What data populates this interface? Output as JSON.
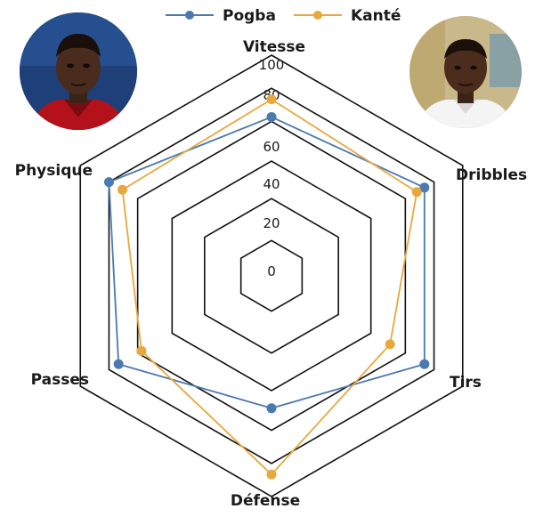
{
  "chart_data": {
    "type": "radar",
    "axes": [
      "Vitesse",
      "Dribbles",
      "Tirs",
      "Défense",
      "Passes",
      "Physique"
    ],
    "ticks": [
      0,
      20,
      40,
      60,
      80,
      100
    ],
    "range": [
      0,
      100
    ],
    "series": [
      {
        "name": "Pogba",
        "color": "#4a7ab0",
        "values": [
          72,
          80,
          80,
          60,
          80,
          85
        ]
      },
      {
        "name": "Kanté",
        "color": "#e8a83e",
        "values": [
          80,
          76,
          62,
          90,
          68,
          78
        ]
      }
    ],
    "legend_position": "top-center"
  },
  "photos": [
    {
      "player": "Pogba",
      "icon": "player-photo-dark-skin-red-jersey"
    },
    {
      "player": "Kanté",
      "icon": "player-photo-dark-skin-white-jersey"
    }
  ]
}
